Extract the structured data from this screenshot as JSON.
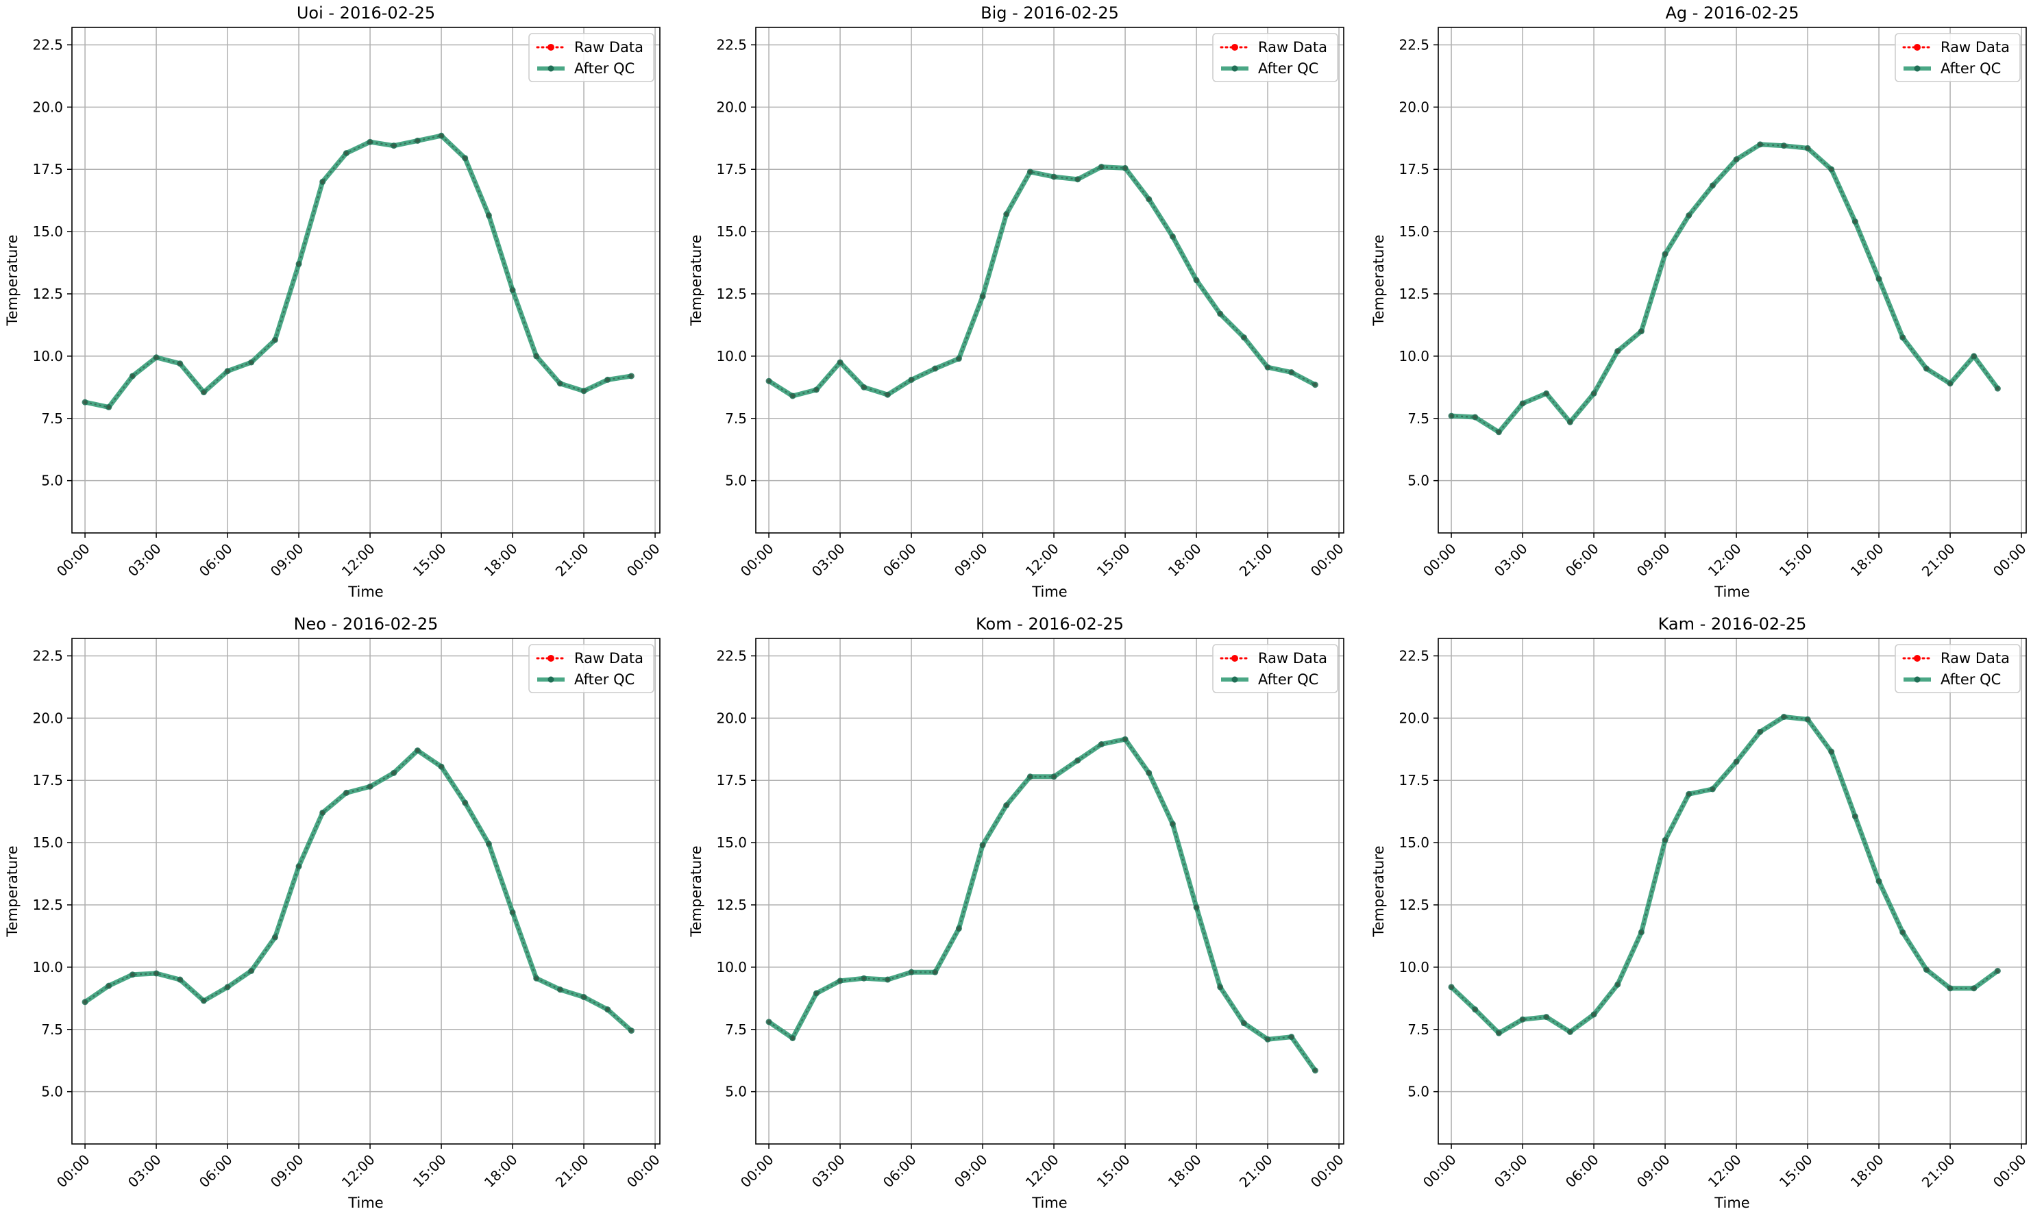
{
  "figure": {
    "colors": {
      "raw": "#ff0000",
      "qc": "#2a9870",
      "qc_marker": "#1f6e55",
      "grid": "#b0b0b0",
      "axes": "#000000",
      "legend_border": "#cccccc"
    }
  },
  "chart_data": [
    {
      "type": "line",
      "title": "Uoi - 2016-02-25",
      "xlabel": "Time",
      "ylabel": "Temperature",
      "x": [
        "00:00",
        "01:00",
        "02:00",
        "03:00",
        "04:00",
        "05:00",
        "06:00",
        "07:00",
        "08:00",
        "09:00",
        "10:00",
        "11:00",
        "12:00",
        "13:00",
        "14:00",
        "15:00",
        "16:00",
        "17:00",
        "18:00",
        "19:00",
        "20:00",
        "21:00",
        "22:00",
        "23:00"
      ],
      "xticks": [
        "00:00",
        "03:00",
        "06:00",
        "09:00",
        "12:00",
        "15:00",
        "18:00",
        "21:00",
        "00:00"
      ],
      "xlim": [
        "-0.55h",
        "24.2h"
      ],
      "ylim": [
        2.9,
        23.2
      ],
      "yticks": [
        "5.0",
        "7.5",
        "10.0",
        "12.5",
        "15.0",
        "17.5",
        "20.0",
        "22.5"
      ],
      "grid": true,
      "legend": "top-right",
      "series": [
        {
          "name": "Raw Data",
          "style": "dotted red line with circle markers",
          "values": [
            8.15,
            7.95,
            9.2,
            9.95,
            9.7,
            8.55,
            9.4,
            9.75,
            10.65,
            13.7,
            17.0,
            18.15,
            18.6,
            18.45,
            18.65,
            18.85,
            17.95,
            15.65,
            12.65,
            10.0,
            8.9,
            8.6,
            9.05,
            9.2
          ]
        },
        {
          "name": "After QC",
          "style": "thick green line with circle markers",
          "values": [
            8.15,
            7.95,
            9.2,
            9.95,
            9.7,
            8.55,
            9.4,
            9.75,
            10.65,
            13.7,
            17.0,
            18.15,
            18.6,
            18.45,
            18.65,
            18.85,
            17.95,
            15.65,
            12.65,
            10.0,
            8.9,
            8.6,
            9.05,
            9.2
          ]
        }
      ]
    },
    {
      "type": "line",
      "title": "Big - 2016-02-25",
      "xlabel": "Time",
      "ylabel": "Temperature",
      "x": [
        "00:00",
        "01:00",
        "02:00",
        "03:00",
        "04:00",
        "05:00",
        "06:00",
        "07:00",
        "08:00",
        "09:00",
        "10:00",
        "11:00",
        "12:00",
        "13:00",
        "14:00",
        "15:00",
        "16:00",
        "17:00",
        "18:00",
        "19:00",
        "20:00",
        "21:00",
        "22:00",
        "23:00"
      ],
      "xticks": [
        "00:00",
        "03:00",
        "06:00",
        "09:00",
        "12:00",
        "15:00",
        "18:00",
        "21:00",
        "00:00"
      ],
      "xlim": [
        "-0.55h",
        "24.2h"
      ],
      "ylim": [
        2.9,
        23.2
      ],
      "yticks": [
        "5.0",
        "7.5",
        "10.0",
        "12.5",
        "15.0",
        "17.5",
        "20.0",
        "22.5"
      ],
      "grid": true,
      "legend": "top-right",
      "series": [
        {
          "name": "Raw Data",
          "style": "dotted red line with circle markers",
          "values": [
            9.0,
            8.4,
            8.65,
            9.75,
            8.75,
            8.45,
            9.05,
            9.5,
            9.9,
            12.4,
            15.7,
            17.4,
            17.2,
            17.1,
            17.6,
            17.55,
            16.3,
            14.8,
            13.05,
            11.7,
            10.75,
            9.55,
            9.35,
            8.85
          ]
        },
        {
          "name": "After QC",
          "style": "thick green line with circle markers",
          "values": [
            9.0,
            8.4,
            8.65,
            9.75,
            8.75,
            8.45,
            9.05,
            9.5,
            9.9,
            12.4,
            15.7,
            17.4,
            17.2,
            17.1,
            17.6,
            17.55,
            16.3,
            14.8,
            13.05,
            11.7,
            10.75,
            9.55,
            9.35,
            8.85
          ]
        }
      ]
    },
    {
      "type": "line",
      "title": "Ag - 2016-02-25",
      "xlabel": "Time",
      "ylabel": "Temperature",
      "x": [
        "00:00",
        "01:00",
        "02:00",
        "03:00",
        "04:00",
        "05:00",
        "06:00",
        "07:00",
        "08:00",
        "09:00",
        "10:00",
        "11:00",
        "12:00",
        "13:00",
        "14:00",
        "15:00",
        "16:00",
        "17:00",
        "18:00",
        "19:00",
        "20:00",
        "21:00",
        "22:00",
        "23:00"
      ],
      "xticks": [
        "00:00",
        "03:00",
        "06:00",
        "09:00",
        "12:00",
        "15:00",
        "18:00",
        "21:00",
        "00:00"
      ],
      "xlim": [
        "-0.55h",
        "24.2h"
      ],
      "ylim": [
        2.9,
        23.2
      ],
      "yticks": [
        "5.0",
        "7.5",
        "10.0",
        "12.5",
        "15.0",
        "17.5",
        "20.0",
        "22.5"
      ],
      "grid": true,
      "legend": "top-right",
      "series": [
        {
          "name": "Raw Data",
          "style": "dotted red line with circle markers",
          "values": [
            7.6,
            7.55,
            6.95,
            8.1,
            8.5,
            7.35,
            8.5,
            10.2,
            11.0,
            14.1,
            15.65,
            16.85,
            17.9,
            18.5,
            18.45,
            18.35,
            17.5,
            15.4,
            13.1,
            10.75,
            9.5,
            8.9,
            10.0,
            8.7
          ]
        },
        {
          "name": "After QC",
          "style": "thick green line with circle markers",
          "values": [
            7.6,
            7.55,
            6.95,
            8.1,
            8.5,
            7.35,
            8.5,
            10.2,
            11.0,
            14.1,
            15.65,
            16.85,
            17.9,
            18.5,
            18.45,
            18.35,
            17.5,
            15.4,
            13.1,
            10.75,
            9.5,
            8.9,
            10.0,
            8.7
          ]
        }
      ]
    },
    {
      "type": "line",
      "title": "Neo - 2016-02-25",
      "xlabel": "Time",
      "ylabel": "Temperature",
      "x": [
        "00:00",
        "01:00",
        "02:00",
        "03:00",
        "04:00",
        "05:00",
        "06:00",
        "07:00",
        "08:00",
        "09:00",
        "10:00",
        "11:00",
        "12:00",
        "13:00",
        "14:00",
        "15:00",
        "16:00",
        "17:00",
        "18:00",
        "19:00",
        "20:00",
        "21:00",
        "22:00",
        "23:00"
      ],
      "xticks": [
        "00:00",
        "03:00",
        "06:00",
        "09:00",
        "12:00",
        "15:00",
        "18:00",
        "21:00",
        "00:00"
      ],
      "xlim": [
        "-0.55h",
        "24.2h"
      ],
      "ylim": [
        2.9,
        23.2
      ],
      "yticks": [
        "5.0",
        "7.5",
        "10.0",
        "12.5",
        "15.0",
        "17.5",
        "20.0",
        "22.5"
      ],
      "grid": true,
      "legend": "top-right",
      "series": [
        {
          "name": "Raw Data",
          "style": "dotted red line with circle markers",
          "values": [
            8.6,
            9.25,
            9.7,
            9.75,
            9.5,
            8.65,
            9.2,
            9.85,
            11.2,
            14.05,
            16.2,
            17.0,
            17.25,
            17.8,
            18.7,
            18.05,
            16.6,
            14.95,
            12.2,
            9.55,
            9.1,
            8.8,
            8.3,
            7.45
          ]
        },
        {
          "name": "After QC",
          "style": "thick green line with circle markers",
          "values": [
            8.6,
            9.25,
            9.7,
            9.75,
            9.5,
            8.65,
            9.2,
            9.85,
            11.2,
            14.05,
            16.2,
            17.0,
            17.25,
            17.8,
            18.7,
            18.05,
            16.6,
            14.95,
            12.2,
            9.55,
            9.1,
            8.8,
            8.3,
            7.45
          ]
        }
      ]
    },
    {
      "type": "line",
      "title": "Kom - 2016-02-25",
      "xlabel": "Time",
      "ylabel": "Temperature",
      "x": [
        "00:00",
        "01:00",
        "02:00",
        "03:00",
        "04:00",
        "05:00",
        "06:00",
        "07:00",
        "08:00",
        "09:00",
        "10:00",
        "11:00",
        "12:00",
        "13:00",
        "14:00",
        "15:00",
        "16:00",
        "17:00",
        "18:00",
        "19:00",
        "20:00",
        "21:00",
        "22:00",
        "23:00"
      ],
      "xticks": [
        "00:00",
        "03:00",
        "06:00",
        "09:00",
        "12:00",
        "15:00",
        "18:00",
        "21:00",
        "00:00"
      ],
      "xlim": [
        "-0.55h",
        "24.2h"
      ],
      "ylim": [
        2.9,
        23.2
      ],
      "yticks": [
        "5.0",
        "7.5",
        "10.0",
        "12.5",
        "15.0",
        "17.5",
        "20.0",
        "22.5"
      ],
      "grid": true,
      "legend": "top-right",
      "series": [
        {
          "name": "Raw Data",
          "style": "dotted red line with circle markers",
          "values": [
            7.8,
            7.15,
            8.95,
            9.45,
            9.55,
            9.5,
            9.8,
            9.8,
            11.55,
            14.9,
            16.5,
            17.65,
            17.65,
            18.3,
            18.95,
            19.15,
            17.8,
            15.75,
            12.4,
            9.2,
            7.75,
            7.1,
            7.2,
            5.85
          ]
        },
        {
          "name": "After QC",
          "style": "thick green line with circle markers",
          "values": [
            7.8,
            7.15,
            8.95,
            9.45,
            9.55,
            9.5,
            9.8,
            9.8,
            11.55,
            14.9,
            16.5,
            17.65,
            17.65,
            18.3,
            18.95,
            19.15,
            17.8,
            15.75,
            12.4,
            9.2,
            7.75,
            7.1,
            7.2,
            5.85
          ]
        }
      ]
    },
    {
      "type": "line",
      "title": "Kam - 2016-02-25",
      "xlabel": "Time",
      "ylabel": "Temperature",
      "x": [
        "00:00",
        "01:00",
        "02:00",
        "03:00",
        "04:00",
        "05:00",
        "06:00",
        "07:00",
        "08:00",
        "09:00",
        "10:00",
        "11:00",
        "12:00",
        "13:00",
        "14:00",
        "15:00",
        "16:00",
        "17:00",
        "18:00",
        "19:00",
        "20:00",
        "21:00",
        "22:00",
        "23:00"
      ],
      "xticks": [
        "00:00",
        "03:00",
        "06:00",
        "09:00",
        "12:00",
        "15:00",
        "18:00",
        "21:00",
        "00:00"
      ],
      "xlim": [
        "-0.55h",
        "24.2h"
      ],
      "ylim": [
        2.9,
        23.2
      ],
      "yticks": [
        "5.0",
        "7.5",
        "10.0",
        "12.5",
        "15.0",
        "17.5",
        "20.0",
        "22.5"
      ],
      "grid": true,
      "legend": "top-right",
      "series": [
        {
          "name": "Raw Data",
          "style": "dotted red line with circle markers",
          "values": [
            9.2,
            8.3,
            7.35,
            7.9,
            8.0,
            7.4,
            8.1,
            9.3,
            11.4,
            15.1,
            16.95,
            17.15,
            18.25,
            19.45,
            20.05,
            19.95,
            18.65,
            16.05,
            13.45,
            11.4,
            9.9,
            9.15,
            9.15,
            9.85
          ]
        },
        {
          "name": "After QC",
          "style": "thick green line with circle markers",
          "values": [
            9.2,
            8.3,
            7.35,
            7.9,
            8.0,
            7.4,
            8.1,
            9.3,
            11.4,
            15.1,
            16.95,
            17.15,
            18.25,
            19.45,
            20.05,
            19.95,
            18.65,
            16.05,
            13.45,
            11.4,
            9.9,
            9.15,
            9.15,
            9.85
          ]
        }
      ]
    }
  ]
}
